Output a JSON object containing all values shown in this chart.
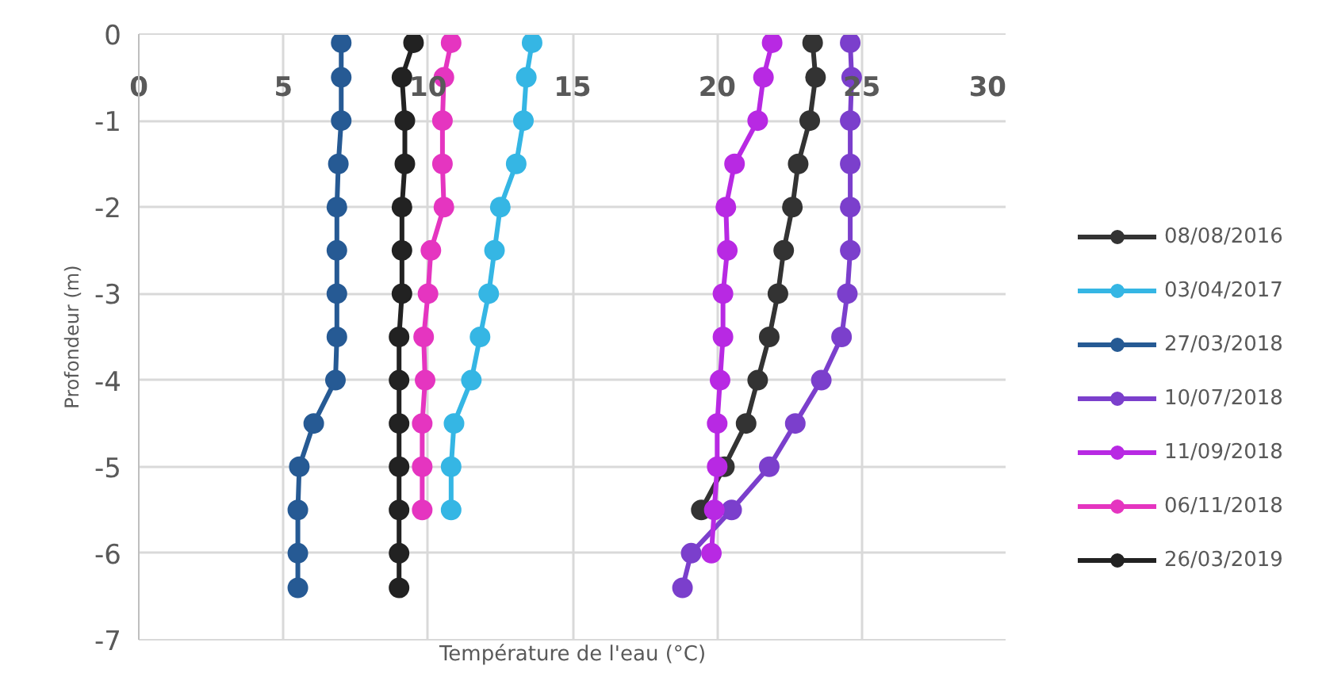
{
  "chart_data": {
    "type": "line",
    "xlabel": "Température de l'eau (°C)",
    "ylabel": "Profondeur (m)",
    "xlim": [
      0,
      30
    ],
    "xticks": [
      0,
      5,
      10,
      15,
      20,
      25,
      30
    ],
    "ylim": [
      -7,
      0
    ],
    "yticks": [
      -7,
      -6,
      -5,
      -4,
      -3,
      -2,
      -1,
      0
    ],
    "grid": true,
    "legend": "right",
    "marker": "circle",
    "line_style": "solid",
    "series": [
      {
        "name": "08/08/2016",
        "color": "#333333",
        "x": [
          23.3,
          23.4,
          23.2,
          22.8,
          22.6,
          22.3,
          22.1,
          21.8,
          21.4,
          21.0,
          20.25,
          19.45
        ],
        "values": [
          -0.1,
          -0.5,
          -1,
          -1.5,
          -2,
          -2.5,
          -3,
          -3.5,
          -4,
          -4.5,
          -5,
          -5.5
        ]
      },
      {
        "name": "03/04/2017",
        "color": "#35b6e4",
        "x": [
          13.6,
          13.4,
          13.3,
          13.05,
          12.5,
          12.3,
          12.1,
          11.8,
          11.5,
          10.9,
          10.8,
          10.8
        ],
        "values": [
          -0.1,
          -0.5,
          -1,
          -1.5,
          -2,
          -2.5,
          -3,
          -3.5,
          -4,
          -4.5,
          -5,
          -5.5
        ]
      },
      {
        "name": "27/03/2018",
        "color": "#265a94",
        "x": [
          7.0,
          7.0,
          7.0,
          6.9,
          6.85,
          6.85,
          6.85,
          6.85,
          6.8,
          6.05,
          5.55,
          5.5,
          5.5,
          5.5
        ],
        "values": [
          -0.1,
          -0.5,
          -1,
          -1.5,
          -2,
          -2.5,
          -3,
          -3.5,
          -4,
          -4.5,
          -5,
          -5.5,
          -6,
          -6.4
        ]
      },
      {
        "name": "10/07/2018",
        "color": "#7b3fcc",
        "x": [
          24.6,
          24.65,
          24.6,
          24.6,
          24.6,
          24.6,
          24.5,
          24.3,
          23.6,
          22.7,
          21.8,
          20.5,
          19.1,
          18.8
        ],
        "values": [
          -0.1,
          -0.5,
          -1,
          -1.5,
          -2,
          -2.5,
          -3,
          -3.5,
          -4,
          -4.5,
          -5,
          -5.5,
          -6,
          -6.4
        ]
      },
      {
        "name": "11/09/2018",
        "color": "#b829e3",
        "x": [
          21.9,
          21.6,
          21.4,
          20.6,
          20.3,
          20.35,
          20.2,
          20.2,
          20.1,
          20.0,
          20.0,
          19.9,
          19.8
        ],
        "values": [
          -0.1,
          -0.5,
          -1,
          -1.5,
          -2,
          -2.5,
          -3,
          -3.5,
          -4,
          -4.5,
          -5,
          -5.5,
          -6
        ]
      },
      {
        "name": "06/11/2018",
        "color": "#e535c0",
        "x": [
          10.8,
          10.55,
          10.5,
          10.5,
          10.55,
          10.1,
          10.0,
          9.85,
          9.9,
          9.8,
          9.8,
          9.8
        ],
        "values": [
          -0.1,
          -0.5,
          -1,
          -1.5,
          -2,
          -2.5,
          -3,
          -3.5,
          -4,
          -4.5,
          -5,
          -5.5
        ]
      },
      {
        "name": "26/03/2019",
        "color": "#222222",
        "x": [
          9.5,
          9.1,
          9.2,
          9.2,
          9.1,
          9.1,
          9.1,
          9.0,
          9.0,
          9.0,
          9.0,
          9.0,
          9.0,
          9.0
        ],
        "values": [
          -0.1,
          -0.5,
          -1,
          -1.5,
          -2,
          -2.5,
          -3,
          -3.5,
          -4,
          -4.5,
          -5,
          -5.5,
          -6,
          -6.4
        ]
      }
    ]
  }
}
